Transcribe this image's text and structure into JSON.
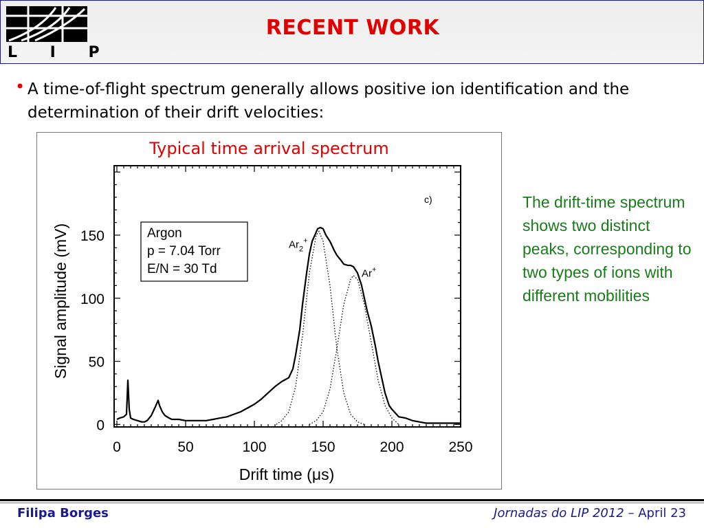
{
  "header": {
    "title": "RECENT WORK",
    "logo_text": "L I P"
  },
  "body": {
    "bullet_text": "A time-of-flight spectrum generally allows positive ion identification and the determination of their drift velocities:",
    "side_note": "The drift-time spectrum shows two distinct peaks, corresponding to two types of ions with different mobilities"
  },
  "footer": {
    "author": "Filipa Borges",
    "event": "Jornadas do LIP 2012",
    "dash": " – ",
    "date": "April 23"
  },
  "colors": {
    "title": "#e00000",
    "footer_text": "#1a1a8c",
    "side_note": "#1b7a1b",
    "caption": "#e00000"
  },
  "chart_data": {
    "type": "line",
    "caption": "Typical time arrival spectrum",
    "panel_label": "c)",
    "xlabel": "Drift time (μs)",
    "ylabel": "Signal amplitude (mV)",
    "xlim": [
      -2,
      250
    ],
    "ylim": [
      -2,
      205
    ],
    "xticks": [
      0,
      50,
      100,
      150,
      200,
      250
    ],
    "yticks": [
      0,
      50,
      100,
      150
    ],
    "grid": false,
    "legend_box": {
      "lines": [
        "Argon",
        "p = 7.04 Torr",
        "E/N = 30 Td"
      ]
    },
    "series": [
      {
        "style": "solid",
        "x": [
          0,
          2,
          5,
          7,
          8,
          9,
          10,
          12,
          15,
          18,
          20,
          22,
          25,
          28,
          30,
          31,
          33,
          35,
          38,
          40,
          45,
          50,
          55,
          60,
          65,
          70,
          75,
          80,
          85,
          90,
          95,
          100,
          105,
          110,
          115,
          120,
          125,
          128,
          130,
          133,
          135,
          138,
          140,
          142,
          144,
          146,
          148,
          150,
          152,
          155,
          158,
          160,
          163,
          165,
          168,
          170,
          172,
          175,
          178,
          180,
          182,
          185,
          188,
          190,
          193,
          195,
          198,
          200,
          205,
          210,
          215,
          220,
          225,
          230,
          235,
          240,
          245,
          250
        ],
        "y": [
          4,
          5,
          6,
          8,
          35,
          12,
          5,
          4,
          3,
          2,
          2,
          3,
          7,
          14,
          19,
          15,
          10,
          7,
          5,
          4,
          4,
          3,
          3,
          3,
          3,
          4,
          5,
          6,
          8,
          10,
          13,
          16,
          20,
          25,
          30,
          34,
          37,
          44,
          55,
          75,
          95,
          120,
          135,
          145,
          150,
          155,
          156,
          155,
          150,
          145,
          138,
          134,
          130,
          127,
          126,
          126,
          125,
          120,
          110,
          100,
          90,
          78,
          62,
          50,
          35,
          25,
          15,
          12,
          6,
          5,
          3,
          2,
          1,
          1,
          1,
          1,
          1,
          1
        ]
      },
      {
        "name": "Ar2+",
        "style": "dotted",
        "x": [
          116,
          120,
          125,
          130,
          135,
          140,
          145,
          147,
          150,
          155,
          160,
          165,
          170,
          175,
          180
        ],
        "y": [
          0,
          3,
          10,
          30,
          70,
          120,
          150,
          153,
          145,
          110,
          60,
          25,
          8,
          2,
          0
        ]
      },
      {
        "name": "Ar+",
        "style": "dotted",
        "x": [
          140,
          145,
          150,
          155,
          160,
          165,
          170,
          172,
          175,
          180,
          185,
          190,
          195,
          200,
          205
        ],
        "y": [
          0,
          3,
          10,
          28,
          60,
          95,
          115,
          118,
          115,
          95,
          65,
          35,
          15,
          5,
          0
        ]
      }
    ],
    "annotations": [
      {
        "label": "Ar",
        "subscript": "2",
        "superscript": "+",
        "x": 125,
        "y": 140
      },
      {
        "label": "Ar",
        "superscript": "+",
        "x": 178,
        "y": 117
      }
    ]
  }
}
